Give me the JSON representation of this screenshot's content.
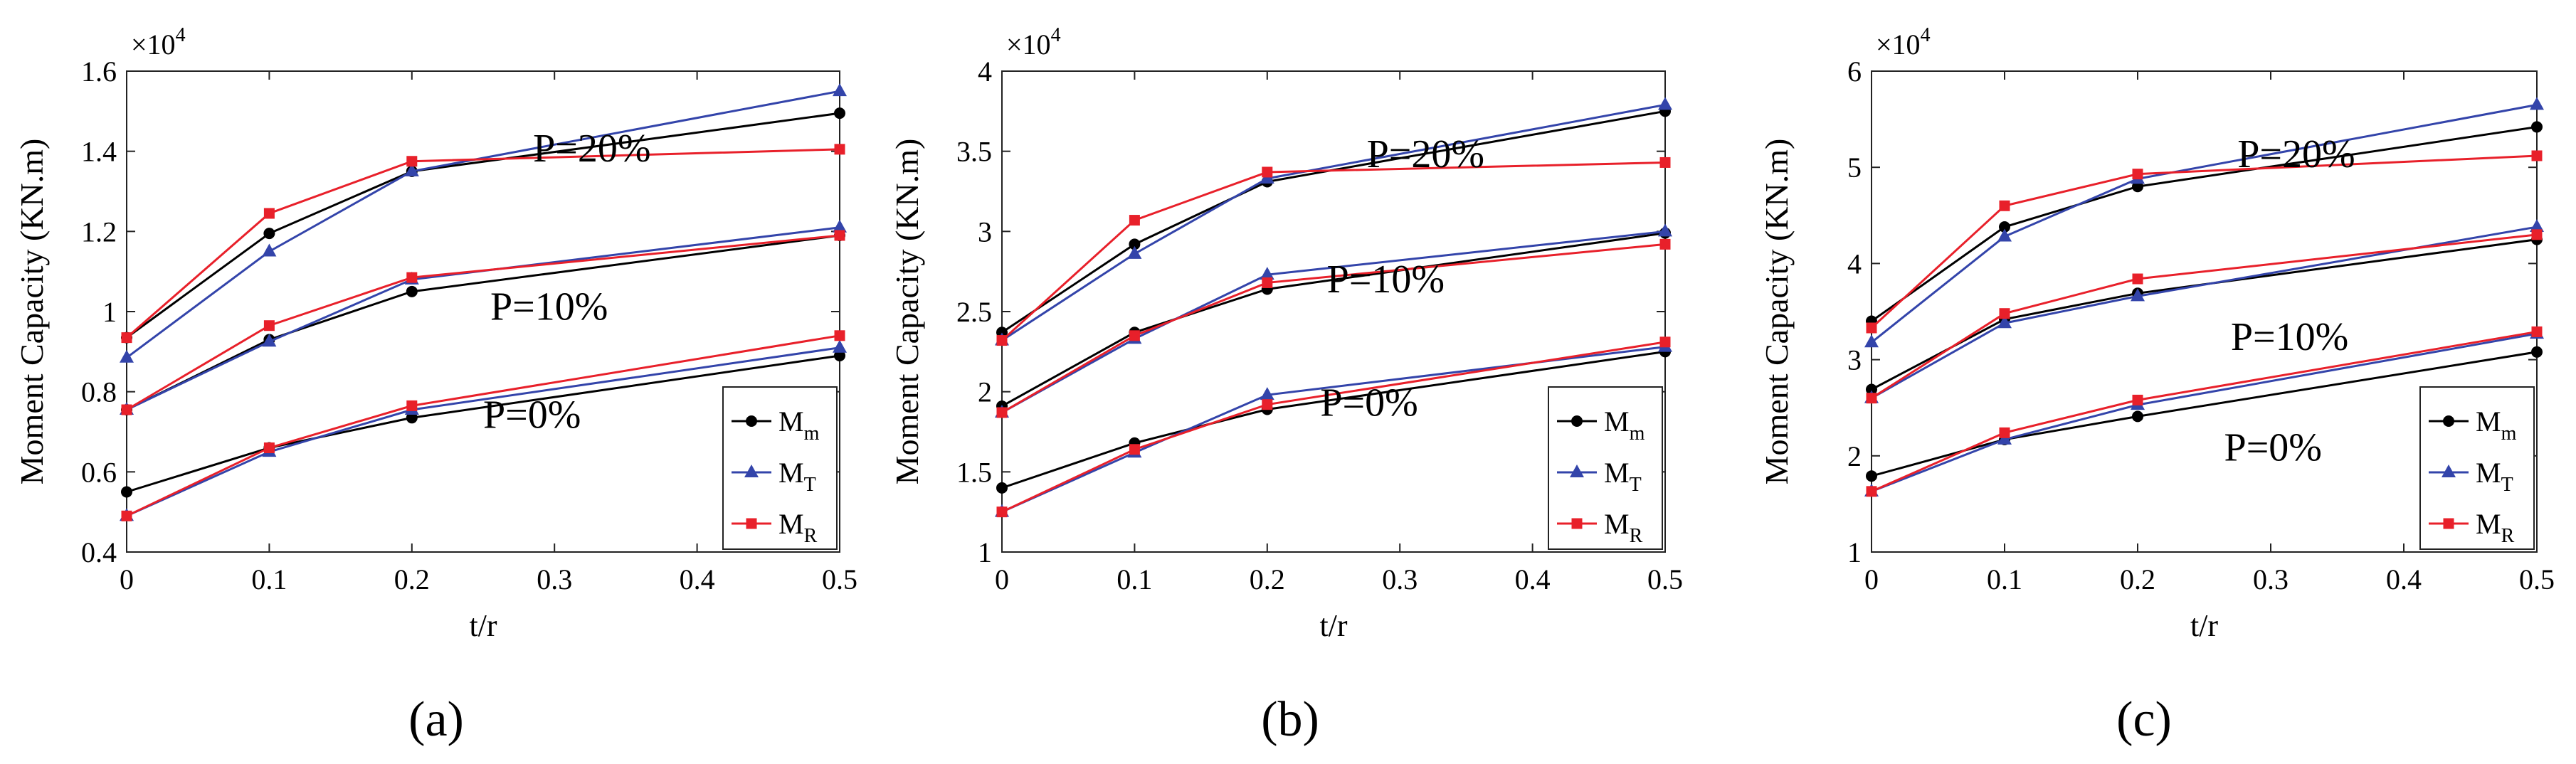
{
  "figure": {
    "panel_labels": [
      "(a)",
      "(b)",
      "(c)"
    ]
  },
  "chart_data": [
    {
      "type": "line",
      "panel_label": "(a)",
      "xlabel": "t/r",
      "ylabel": "Moment Capacity (KN.m)",
      "y_multiplier": "×10",
      "y_exponent": "4",
      "x": [
        0,
        0.1,
        0.2,
        0.5
      ],
      "xlim": [
        0,
        0.5
      ],
      "xticks": [
        0,
        0.1,
        0.2,
        0.3,
        0.4,
        0.5
      ],
      "xtick_labels": [
        "0",
        "0.1",
        "0.2",
        "0.3",
        "0.4",
        "0.5"
      ],
      "ylim": [
        0.4,
        1.6
      ],
      "yticks": [
        0.4,
        0.6,
        0.8,
        1.0,
        1.2,
        1.4,
        1.6
      ],
      "ytick_labels": [
        "0.4",
        "0.6",
        "0.8",
        "1",
        "1.2",
        "1.4",
        "1.6"
      ],
      "legend": [
        {
          "base": "M",
          "sub": "m",
          "color": "#000000",
          "marker": "circle"
        },
        {
          "base": "M",
          "sub": "T",
          "color": "#3344aa",
          "marker": "triangle"
        },
        {
          "base": "M",
          "sub": "R",
          "color": "#e8202a",
          "marker": "square"
        }
      ],
      "series": [
        {
          "name": "M_m",
          "group": "P=0%",
          "color": "#000000",
          "marker": "circle",
          "values": [
            0.55,
            0.66,
            0.735,
            0.89
          ]
        },
        {
          "name": "M_T",
          "group": "P=0%",
          "color": "#3344aa",
          "marker": "triangle",
          "values": [
            0.49,
            0.65,
            0.755,
            0.91
          ]
        },
        {
          "name": "M_R",
          "group": "P=0%",
          "color": "#e8202a",
          "marker": "square",
          "values": [
            0.49,
            0.66,
            0.765,
            0.94
          ]
        },
        {
          "name": "M_m",
          "group": "P=10%",
          "color": "#000000",
          "marker": "circle",
          "values": [
            0.755,
            0.93,
            1.05,
            1.19
          ]
        },
        {
          "name": "M_T",
          "group": "P=10%",
          "color": "#3344aa",
          "marker": "triangle",
          "values": [
            0.755,
            0.925,
            1.08,
            1.21
          ]
        },
        {
          "name": "M_R",
          "group": "P=10%",
          "color": "#e8202a",
          "marker": "square",
          "values": [
            0.755,
            0.965,
            1.085,
            1.19
          ]
        },
        {
          "name": "M_m",
          "group": "P=20%",
          "color": "#000000",
          "marker": "circle",
          "values": [
            0.935,
            1.195,
            1.35,
            1.495
          ]
        },
        {
          "name": "M_T",
          "group": "P=20%",
          "color": "#3344aa",
          "marker": "triangle",
          "values": [
            0.885,
            1.15,
            1.35,
            1.55
          ]
        },
        {
          "name": "M_R",
          "group": "P=20%",
          "color": "#e8202a",
          "marker": "square",
          "values": [
            0.935,
            1.245,
            1.375,
            1.405
          ]
        }
      ],
      "annotations": [
        {
          "text": "P=20%",
          "x": 0.285,
          "y": 1.375
        },
        {
          "text": "P=10%",
          "x": 0.255,
          "y": 0.98
        },
        {
          "text": "P=0%",
          "x": 0.25,
          "y": 0.71
        }
      ]
    },
    {
      "type": "line",
      "panel_label": "(b)",
      "xlabel": "t/r",
      "ylabel": "Moment Capacity (KN.m)",
      "y_multiplier": "×10",
      "y_exponent": "4",
      "x": [
        0,
        0.1,
        0.2,
        0.5
      ],
      "xlim": [
        0,
        0.5
      ],
      "xticks": [
        0,
        0.1,
        0.2,
        0.3,
        0.4,
        0.5
      ],
      "xtick_labels": [
        "0",
        "0.1",
        "0.2",
        "0.3",
        "0.4",
        "0.5"
      ],
      "ylim": [
        1,
        4
      ],
      "yticks": [
        1,
        1.5,
        2,
        2.5,
        3,
        3.5,
        4
      ],
      "ytick_labels": [
        "1",
        "1.5",
        "2",
        "2.5",
        "3",
        "3.5",
        "4"
      ],
      "legend": [
        {
          "base": "M",
          "sub": "m",
          "color": "#000000",
          "marker": "circle"
        },
        {
          "base": "M",
          "sub": "T",
          "color": "#3344aa",
          "marker": "triangle"
        },
        {
          "base": "M",
          "sub": "R",
          "color": "#e8202a",
          "marker": "square"
        }
      ],
      "series": [
        {
          "name": "M_m",
          "group": "P=0%",
          "color": "#000000",
          "marker": "circle",
          "values": [
            1.4,
            1.68,
            1.89,
            2.25
          ]
        },
        {
          "name": "M_T",
          "group": "P=0%",
          "color": "#3344aa",
          "marker": "triangle",
          "values": [
            1.25,
            1.62,
            1.98,
            2.28
          ]
        },
        {
          "name": "M_R",
          "group": "P=0%",
          "color": "#e8202a",
          "marker": "square",
          "values": [
            1.25,
            1.64,
            1.92,
            2.31
          ]
        },
        {
          "name": "M_m",
          "group": "P=10%",
          "color": "#000000",
          "marker": "circle",
          "values": [
            1.91,
            2.37,
            2.64,
            2.99
          ]
        },
        {
          "name": "M_T",
          "group": "P=10%",
          "color": "#3344aa",
          "marker": "triangle",
          "values": [
            1.87,
            2.33,
            2.73,
            3.0
          ]
        },
        {
          "name": "M_R",
          "group": "P=10%",
          "color": "#e8202a",
          "marker": "square",
          "values": [
            1.87,
            2.35,
            2.68,
            2.92
          ]
        },
        {
          "name": "M_m",
          "group": "P=20%",
          "color": "#000000",
          "marker": "circle",
          "values": [
            2.37,
            2.92,
            3.31,
            3.75
          ]
        },
        {
          "name": "M_T",
          "group": "P=20%",
          "color": "#3344aa",
          "marker": "triangle",
          "values": [
            2.32,
            2.86,
            3.33,
            3.79
          ]
        },
        {
          "name": "M_R",
          "group": "P=20%",
          "color": "#e8202a",
          "marker": "square",
          "values": [
            2.32,
            3.07,
            3.37,
            3.43
          ]
        }
      ],
      "annotations": [
        {
          "text": "P=20%",
          "x": 0.275,
          "y": 3.4
        },
        {
          "text": "P=10%",
          "x": 0.245,
          "y": 2.62
        },
        {
          "text": "P=0%",
          "x": 0.24,
          "y": 1.85
        }
      ]
    },
    {
      "type": "line",
      "panel_label": "(c)",
      "xlabel": "t/r",
      "ylabel": "Moment Capacity (KN.m)",
      "y_multiplier": "×10",
      "y_exponent": "4",
      "x": [
        0,
        0.1,
        0.2,
        0.5
      ],
      "xlim": [
        0,
        0.5
      ],
      "xticks": [
        0,
        0.1,
        0.2,
        0.3,
        0.4,
        0.5
      ],
      "xtick_labels": [
        "0",
        "0.1",
        "0.2",
        "0.3",
        "0.4",
        "0.5"
      ],
      "ylim": [
        1,
        6
      ],
      "yticks": [
        1,
        2,
        3,
        4,
        5,
        6
      ],
      "ytick_labels": [
        "1",
        "2",
        "3",
        "4",
        "5",
        "6"
      ],
      "legend": [
        {
          "base": "M",
          "sub": "m",
          "color": "#000000",
          "marker": "circle"
        },
        {
          "base": "M",
          "sub": "T",
          "color": "#3344aa",
          "marker": "triangle"
        },
        {
          "base": "M",
          "sub": "R",
          "color": "#e8202a",
          "marker": "square"
        }
      ],
      "series": [
        {
          "name": "M_m",
          "group": "P=0%",
          "color": "#000000",
          "marker": "circle",
          "values": [
            1.79,
            2.17,
            2.41,
            3.08
          ]
        },
        {
          "name": "M_T",
          "group": "P=0%",
          "color": "#3344aa",
          "marker": "triangle",
          "values": [
            1.63,
            2.17,
            2.53,
            3.27
          ]
        },
        {
          "name": "M_R",
          "group": "P=0%",
          "color": "#e8202a",
          "marker": "square",
          "values": [
            1.63,
            2.24,
            2.58,
            3.29
          ]
        },
        {
          "name": "M_m",
          "group": "P=10%",
          "color": "#000000",
          "marker": "circle",
          "values": [
            2.69,
            3.42,
            3.69,
            4.25
          ]
        },
        {
          "name": "M_T",
          "group": "P=10%",
          "color": "#3344aa",
          "marker": "triangle",
          "values": [
            2.6,
            3.38,
            3.66,
            4.38
          ]
        },
        {
          "name": "M_R",
          "group": "P=10%",
          "color": "#e8202a",
          "marker": "square",
          "values": [
            2.6,
            3.48,
            3.84,
            4.3
          ]
        },
        {
          "name": "M_m",
          "group": "P=20%",
          "color": "#000000",
          "marker": "circle",
          "values": [
            3.4,
            4.38,
            4.8,
            5.42
          ]
        },
        {
          "name": "M_T",
          "group": "P=20%",
          "color": "#3344aa",
          "marker": "triangle",
          "values": [
            3.18,
            4.28,
            4.88,
            5.65
          ]
        },
        {
          "name": "M_R",
          "group": "P=20%",
          "color": "#e8202a",
          "marker": "square",
          "values": [
            3.33,
            4.6,
            4.93,
            5.12
          ]
        }
      ],
      "annotations": [
        {
          "text": "P=20%",
          "x": 0.275,
          "y": 5.0
        },
        {
          "text": "P=10%",
          "x": 0.27,
          "y": 3.1
        },
        {
          "text": "P=0%",
          "x": 0.265,
          "y": 1.95
        }
      ]
    }
  ]
}
